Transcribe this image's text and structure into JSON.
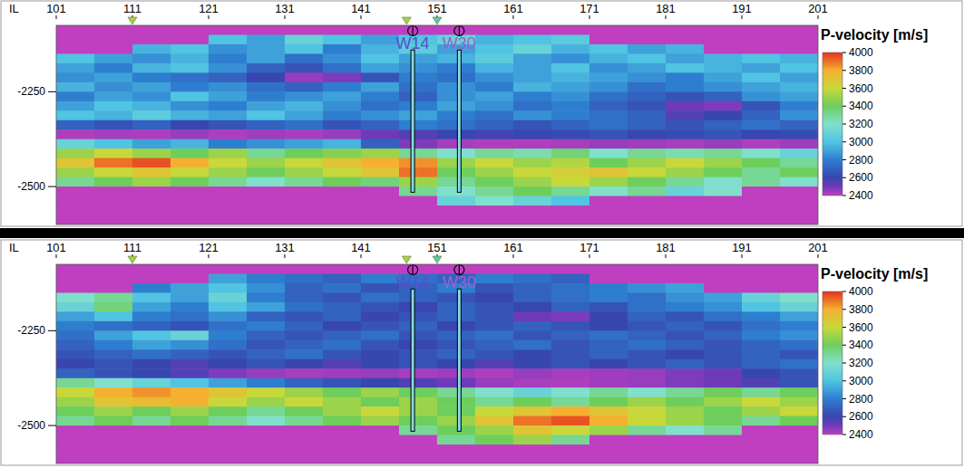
{
  "chart_data": [
    {
      "type": "heatmap",
      "x_label": "IL",
      "xlim": [
        101,
        201
      ],
      "xticks": [
        101,
        111,
        121,
        131,
        141,
        151,
        161,
        171,
        181,
        191,
        201
      ],
      "ylim": [
        -2600,
        -2075
      ],
      "yticks": [
        -2250,
        -2500
      ],
      "x_bins": [
        101,
        106,
        111,
        116,
        121,
        126,
        131,
        136,
        141,
        146,
        151,
        156,
        161,
        166,
        171,
        176,
        181,
        186,
        191,
        196,
        201
      ],
      "y_bins": [
        -2075,
        -2100,
        -2125,
        -2150,
        -2175,
        -2200,
        -2225,
        -2250,
        -2275,
        -2300,
        -2325,
        -2350,
        -2375,
        -2400,
        -2425,
        -2450,
        -2475,
        -2500,
        -2525,
        -2550,
        -2575,
        -2600
      ],
      "cells": [
        [
          2400,
          2400,
          2400,
          2400,
          2400,
          2400,
          2400,
          2400,
          2400,
          2400,
          2400,
          2400,
          2400,
          2400,
          2400,
          2400,
          2400,
          2400,
          2400,
          2400
        ],
        [
          2400,
          2400,
          2400,
          2400,
          3000,
          2900,
          3100,
          3000,
          2900,
          3000,
          3100,
          2950,
          3000,
          3050,
          2400,
          2400,
          2400,
          2400,
          2400,
          2400
        ],
        [
          2400,
          2400,
          2950,
          3000,
          2850,
          2900,
          3000,
          2800,
          2950,
          3050,
          2900,
          3000,
          3100,
          2950,
          3000,
          2900,
          2950,
          2400,
          2400,
          2400
        ],
        [
          3000,
          2900,
          2850,
          2950,
          2800,
          2900,
          2750,
          2850,
          3000,
          2900,
          2950,
          3050,
          2900,
          2850,
          2950,
          3000,
          2900,
          2950,
          3000,
          2950
        ],
        [
          2900,
          2800,
          2950,
          3000,
          2850,
          2700,
          2650,
          2750,
          2900,
          2850,
          2800,
          2950,
          2900,
          3000,
          2850,
          2900,
          3000,
          2950,
          2900,
          3000
        ],
        [
          2850,
          2900,
          2800,
          2750,
          2700,
          2600,
          2450,
          2480,
          2650,
          2800,
          2750,
          2850,
          2900,
          2950,
          2900,
          2850,
          2800,
          2900,
          3000,
          2900
        ],
        [
          2950,
          2850,
          2900,
          2800,
          2850,
          2750,
          2700,
          2800,
          2900,
          2750,
          2850,
          2800,
          2950,
          2900,
          2850,
          2750,
          2800,
          2850,
          2900,
          2950
        ],
        [
          2800,
          2900,
          2850,
          3000,
          2900,
          2800,
          2850,
          2900,
          2800,
          2700,
          2850,
          2900,
          2800,
          2850,
          2750,
          2700,
          2650,
          2700,
          2850,
          2900
        ],
        [
          2900,
          3000,
          2950,
          2850,
          2800,
          2900,
          2950,
          2850,
          2750,
          2800,
          2900,
          2850,
          2750,
          2800,
          2700,
          2650,
          2500,
          2480,
          2650,
          2800
        ],
        [
          3000,
          2950,
          3050,
          2950,
          2900,
          3000,
          2900,
          2800,
          2850,
          2900,
          2800,
          2750,
          2850,
          2800,
          2750,
          2700,
          2550,
          2600,
          2700,
          2850
        ],
        [
          2700,
          2650,
          2700,
          2600,
          2650,
          2700,
          2750,
          2650,
          2700,
          2800,
          2750,
          2700,
          2650,
          2700,
          2750,
          2700,
          2650,
          2700,
          2750,
          2700
        ],
        [
          2420,
          2430,
          2420,
          2450,
          2420,
          2440,
          2430,
          2450,
          2500,
          2550,
          2600,
          2580,
          2600,
          2620,
          2650,
          2600,
          2620,
          2650,
          2600,
          2620
        ],
        [
          3100,
          3000,
          2900,
          2950,
          2800,
          2850,
          2900,
          2950,
          2700,
          2480,
          2430,
          2420,
          2420,
          2430,
          2450,
          2440,
          2430,
          2450,
          2420,
          2440
        ],
        [
          3500,
          3600,
          3500,
          3400,
          3500,
          3300,
          3400,
          3450,
          3500,
          3300,
          3200,
          3300,
          3250,
          3350,
          3200,
          3300,
          3250,
          3300,
          3200,
          3100
        ],
        [
          3700,
          3900,
          3950,
          3800,
          3600,
          3500,
          3600,
          3700,
          3800,
          3850,
          3500,
          3600,
          3500,
          3550,
          3400,
          3500,
          3600,
          3500,
          3400,
          3300
        ],
        [
          3500,
          3600,
          3700,
          3600,
          3500,
          3400,
          3500,
          3600,
          3700,
          3900,
          3400,
          3500,
          3600,
          3650,
          3700,
          3600,
          3500,
          3400,
          3300,
          3400
        ],
        [
          3300,
          3400,
          3500,
          3400,
          3300,
          3200,
          3300,
          3400,
          3350,
          3500,
          3300,
          3400,
          3500,
          3600,
          3500,
          3400,
          3300,
          3200,
          3300,
          3200
        ],
        [
          2400,
          2400,
          2400,
          2400,
          2400,
          2400,
          2400,
          2400,
          2400,
          3300,
          3200,
          3300,
          3400,
          3300,
          3200,
          3300,
          3100,
          3200,
          2400,
          2400
        ],
        [
          2400,
          2400,
          2400,
          2400,
          2400,
          2400,
          2400,
          2400,
          2400,
          2400,
          3100,
          3200,
          3100,
          3000,
          2400,
          2400,
          2400,
          2400,
          2400,
          2400
        ],
        [
          2400,
          2400,
          2400,
          2400,
          2400,
          2400,
          2400,
          2400,
          2400,
          2400,
          2400,
          2400,
          2400,
          2400,
          2400,
          2400,
          2400,
          2400,
          2400,
          2400
        ],
        [
          2400,
          2400,
          2400,
          2400,
          2400,
          2400,
          2400,
          2400,
          2400,
          2400,
          2400,
          2400,
          2400,
          2400,
          2400,
          2400,
          2400,
          2400,
          2400,
          2400
        ]
      ],
      "colorbar": {
        "label": "P-velocity [m/s]",
        "range": [
          2400,
          4000
        ],
        "ticks": [
          4000,
          3800,
          3600,
          3400,
          3200,
          3000,
          2800,
          2600,
          2400
        ]
      },
      "wells": [
        {
          "name": "W14",
          "il": 147.8,
          "top": -2140,
          "bottom": -2515,
          "color": "#5a4fc8"
        },
        {
          "name": "W30",
          "il": 153.9,
          "top": -2140,
          "bottom": -2515,
          "color": "#9a62d0"
        }
      ],
      "markers": [
        {
          "il": 111,
          "color": "#a8cf48"
        },
        {
          "il": 147,
          "color": "#a8cf48"
        },
        {
          "il": 151,
          "color": "#5cc8a8"
        }
      ]
    },
    {
      "type": "heatmap",
      "x_label": "IL",
      "xlim": [
        101,
        201
      ],
      "xticks": [
        101,
        111,
        121,
        131,
        141,
        151,
        161,
        171,
        181,
        191,
        201
      ],
      "ylim": [
        -2600,
        -2075
      ],
      "yticks": [
        -2250,
        -2500
      ],
      "x_bins": [
        101,
        106,
        111,
        116,
        121,
        126,
        131,
        136,
        141,
        146,
        151,
        156,
        161,
        166,
        171,
        176,
        181,
        186,
        191,
        196,
        201
      ],
      "y_bins": [
        -2075,
        -2100,
        -2125,
        -2150,
        -2175,
        -2200,
        -2225,
        -2250,
        -2275,
        -2300,
        -2325,
        -2350,
        -2375,
        -2400,
        -2425,
        -2450,
        -2475,
        -2500,
        -2525,
        -2550,
        -2575,
        -2600
      ],
      "cells": [
        [
          2400,
          2400,
          2400,
          2400,
          2400,
          2400,
          2400,
          2400,
          2400,
          2400,
          2400,
          2400,
          2400,
          2400,
          2400,
          2400,
          2400,
          2400,
          2400,
          2400
        ],
        [
          2400,
          2400,
          2400,
          2400,
          2900,
          2800,
          2750,
          2700,
          2800,
          2750,
          2700,
          2800,
          2750,
          2700,
          2400,
          2400,
          2400,
          2400,
          2400,
          2400
        ],
        [
          2400,
          2400,
          2800,
          2900,
          3000,
          2850,
          2700,
          2750,
          2650,
          2700,
          2800,
          2650,
          2700,
          2750,
          2800,
          2850,
          2900,
          2400,
          2400,
          2400
        ],
        [
          3200,
          3300,
          3000,
          2900,
          3100,
          2800,
          2700,
          2650,
          2750,
          2700,
          2650,
          2600,
          2700,
          2750,
          2800,
          2750,
          2850,
          2900,
          3100,
          3200
        ],
        [
          3100,
          3350,
          2900,
          2800,
          3000,
          2900,
          2750,
          2700,
          2650,
          2600,
          2700,
          2650,
          2600,
          2700,
          2650,
          2750,
          2800,
          2850,
          3000,
          3100
        ],
        [
          2900,
          3000,
          2800,
          2750,
          2850,
          2700,
          2650,
          2700,
          2600,
          2650,
          2700,
          2650,
          2500,
          2480,
          2600,
          2700,
          2650,
          2750,
          2800,
          2900
        ],
        [
          2800,
          2750,
          2700,
          2650,
          2750,
          2800,
          2700,
          2600,
          2650,
          2700,
          2600,
          2650,
          2700,
          2650,
          2600,
          2650,
          2700,
          2650,
          2750,
          2800
        ],
        [
          2750,
          2900,
          3000,
          3100,
          2800,
          2700,
          2650,
          2700,
          2750,
          2650,
          2700,
          2750,
          2650,
          2700,
          2750,
          2700,
          2650,
          2700,
          2800,
          2850
        ],
        [
          2700,
          2800,
          2900,
          2850,
          2750,
          2650,
          2700,
          2750,
          2650,
          2600,
          2650,
          2700,
          2750,
          2650,
          2700,
          2750,
          2700,
          2650,
          2700,
          2750
        ],
        [
          2650,
          2700,
          2750,
          2700,
          2650,
          2700,
          2750,
          2650,
          2600,
          2650,
          2700,
          2650,
          2600,
          2650,
          2700,
          2650,
          2600,
          2650,
          2700,
          2650
        ],
        [
          2600,
          2650,
          2600,
          2550,
          2600,
          2650,
          2600,
          2550,
          2600,
          2650,
          2600,
          2550,
          2600,
          2650,
          2600,
          2650,
          2700,
          2650,
          2700,
          2750
        ],
        [
          2700,
          2650,
          2600,
          2550,
          2480,
          2450,
          2430,
          2440,
          2450,
          2430,
          2440,
          2420,
          2450,
          2430,
          2440,
          2450,
          2480,
          2500,
          2600,
          2650
        ],
        [
          3300,
          3200,
          3100,
          3000,
          2900,
          2800,
          2700,
          2650,
          2600,
          2550,
          2500,
          2450,
          2430,
          2420,
          2440,
          2450,
          2480,
          2500,
          2550,
          2650
        ],
        [
          3600,
          3800,
          3850,
          3800,
          3700,
          3600,
          3500,
          3400,
          3500,
          3400,
          3300,
          3200,
          3100,
          3200,
          3300,
          3200,
          3300,
          3400,
          3300,
          3400
        ],
        [
          3500,
          3700,
          3750,
          3800,
          3600,
          3500,
          3600,
          3500,
          3400,
          3500,
          3400,
          3300,
          3400,
          3300,
          3400,
          3500,
          3400,
          3500,
          3600,
          3500
        ],
        [
          3400,
          3500,
          3400,
          3500,
          3400,
          3300,
          3400,
          3500,
          3600,
          3500,
          3400,
          3600,
          3700,
          3800,
          3700,
          3600,
          3500,
          3400,
          3500,
          3600
        ],
        [
          3300,
          3400,
          3300,
          3400,
          3300,
          3200,
          3300,
          3400,
          3500,
          3400,
          3500,
          3700,
          3900,
          3950,
          3800,
          3600,
          3500,
          3400,
          3300,
          3400
        ],
        [
          2400,
          2400,
          2400,
          2400,
          2400,
          2400,
          2400,
          2400,
          2400,
          3300,
          3400,
          3500,
          3700,
          3600,
          3500,
          3300,
          3200,
          3300,
          2400,
          2400
        ],
        [
          2400,
          2400,
          2400,
          2400,
          2400,
          2400,
          2400,
          2400,
          2400,
          2400,
          3300,
          3400,
          3500,
          3300,
          2400,
          2400,
          2400,
          2400,
          2400,
          2400
        ],
        [
          2400,
          2400,
          2400,
          2400,
          2400,
          2400,
          2400,
          2400,
          2400,
          2400,
          2400,
          2400,
          2400,
          2400,
          2400,
          2400,
          2400,
          2400,
          2400,
          2400
        ],
        [
          2400,
          2400,
          2400,
          2400,
          2400,
          2400,
          2400,
          2400,
          2400,
          2400,
          2400,
          2400,
          2400,
          2400,
          2400,
          2400,
          2400,
          2400,
          2400,
          2400
        ]
      ],
      "colorbar": {
        "label": "P-velocity [m/s]",
        "range": [
          2400,
          4000
        ],
        "ticks": [
          4000,
          3800,
          3600,
          3400,
          3200,
          3000,
          2800,
          2600,
          2400
        ]
      },
      "wells": [
        {
          "name": "W14",
          "il": 147.8,
          "top": -2140,
          "bottom": -2515,
          "color": "#5a4fc8"
        },
        {
          "name": "W30",
          "il": 153.9,
          "top": -2140,
          "bottom": -2515,
          "color": "#9a62d0"
        }
      ],
      "markers": [
        {
          "il": 111,
          "color": "#a8cf48"
        },
        {
          "il": 147,
          "color": "#a8cf48"
        },
        {
          "il": 151,
          "color": "#5cc8a8"
        }
      ]
    }
  ]
}
